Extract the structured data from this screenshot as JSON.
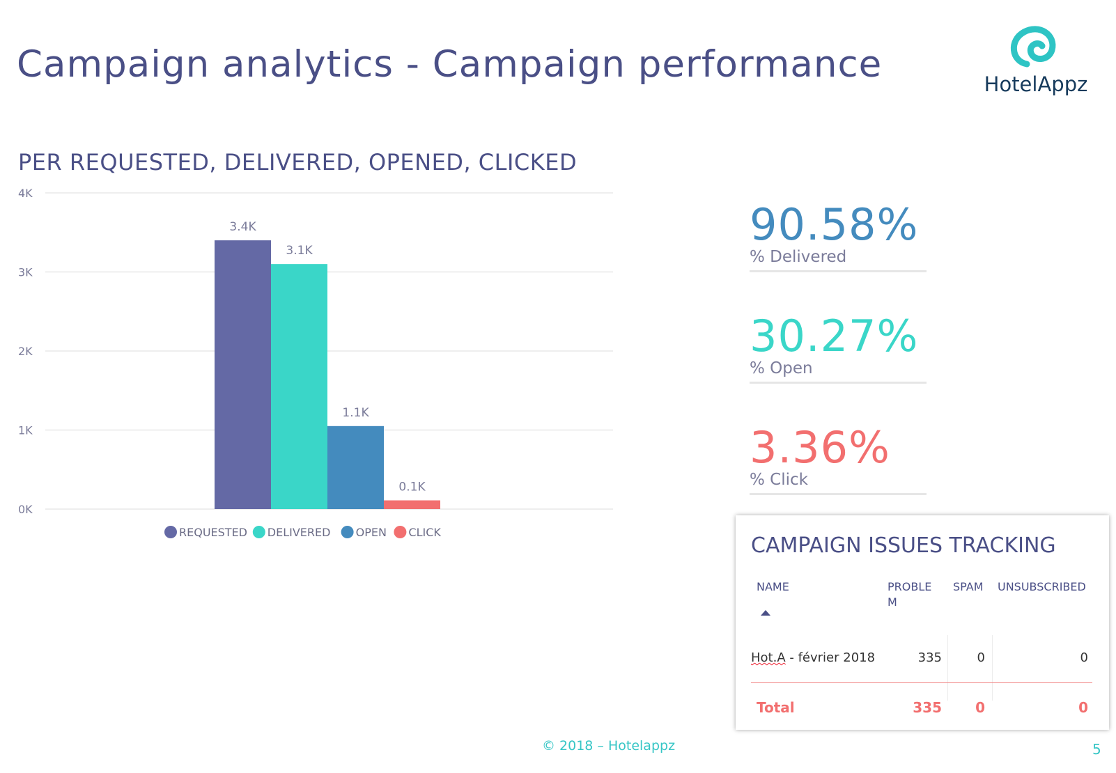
{
  "header": {
    "title": "Campaign analytics - Campaign performance",
    "logo_text": "HotelAppz",
    "logo_color": "#2ec4c4"
  },
  "chart_title": "PER REQUESTED, DELIVERED, OPENED, CLICKED",
  "chart_data": {
    "type": "bar",
    "title": "PER REQUESTED, DELIVERED, OPENED, CLICKED",
    "categories": [
      "REQUESTED",
      "DELIVERED",
      "OPEN",
      "CLICK"
    ],
    "values": [
      3400,
      3100,
      1050,
      110
    ],
    "data_labels": [
      "3.4K",
      "3.1K",
      "1.1K",
      "0.1K"
    ],
    "colors": [
      "#6469a5",
      "#3ad6c8",
      "#448bbe",
      "#f26f6f"
    ],
    "ylim": [
      0,
      4000
    ],
    "yticks": [
      0,
      1000,
      2000,
      3000,
      4000
    ],
    "ytick_labels": [
      "0K",
      "1K",
      "2K",
      "3K",
      "4K"
    ],
    "grid": true,
    "legend": [
      "REQUESTED",
      "DELIVERED",
      "OPEN",
      "CLICK"
    ],
    "legend_position": "bottom-center"
  },
  "kpis": [
    {
      "value": "90.58%",
      "label": "% Delivered",
      "color": "#448bbe"
    },
    {
      "value": "30.27%",
      "label": "% Open",
      "color": "#3ad6c8"
    },
    {
      "value": "3.36%",
      "label": "% Click",
      "color": "#f26f6f"
    }
  ],
  "issues": {
    "title": "CAMPAIGN ISSUES TRACKING",
    "columns": [
      "NAME",
      "PROBLE\nM",
      "SPAM",
      "UNSUBSCRIBED"
    ],
    "row": {
      "name_prefix": "Hot.A",
      "name_rest": "- février 2018",
      "problem": "335",
      "spam": "0",
      "unsubscribed": "0"
    },
    "total": {
      "label": "Total",
      "problem": "335",
      "spam": "0",
      "unsubscribed": "0"
    }
  },
  "footer": {
    "text": "© 2018 –  Hotelappz",
    "page_number": "5"
  }
}
